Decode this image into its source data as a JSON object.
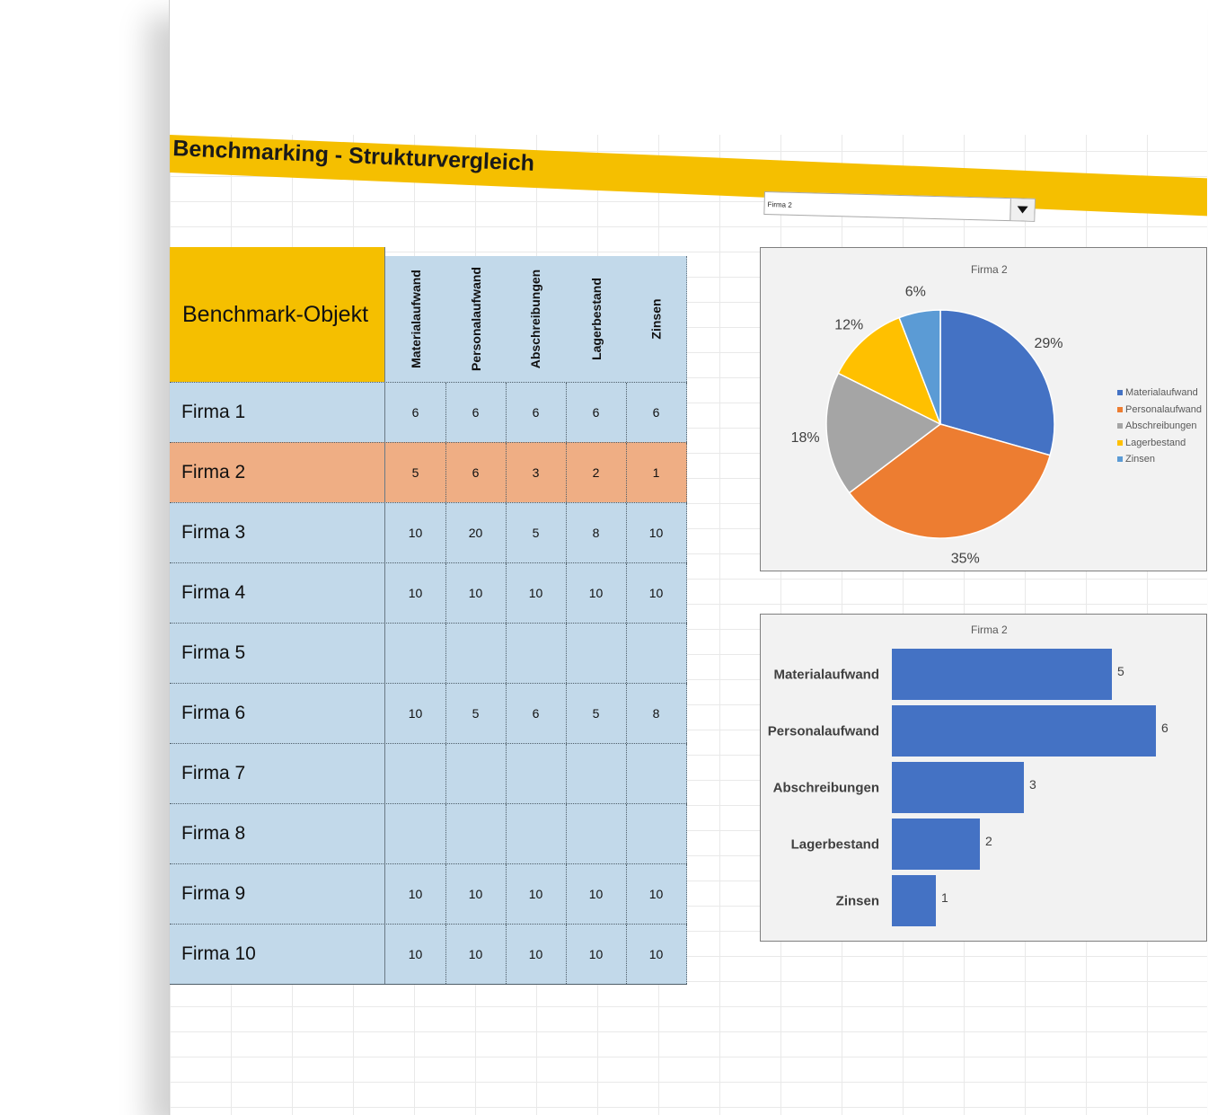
{
  "title": "Benchmarking - Strukturvergleich",
  "dropdown": {
    "selected": "Firma 2"
  },
  "table": {
    "header": "Benchmark-Objekt",
    "columns": [
      "Materialaufwand",
      "Personalaufwand",
      "Abschreibungen",
      "Lagerbestand",
      "Zinsen"
    ],
    "selected_row": 1,
    "rows": [
      {
        "name": "Firma 1",
        "values": [
          "6",
          "6",
          "6",
          "6",
          "6"
        ]
      },
      {
        "name": "Firma 2",
        "values": [
          "5",
          "6",
          "3",
          "2",
          "1"
        ]
      },
      {
        "name": "Firma 3",
        "values": [
          "10",
          "20",
          "5",
          "8",
          "10"
        ]
      },
      {
        "name": "Firma 4",
        "values": [
          "10",
          "10",
          "10",
          "10",
          "10"
        ]
      },
      {
        "name": "Firma 5",
        "values": [
          "",
          "",
          "",
          "",
          ""
        ]
      },
      {
        "name": "Firma 6",
        "values": [
          "10",
          "5",
          "6",
          "5",
          "8"
        ]
      },
      {
        "name": "Firma 7",
        "values": [
          "",
          "",
          "",
          "",
          ""
        ]
      },
      {
        "name": "Firma 8",
        "values": [
          "",
          "",
          "",
          "",
          ""
        ]
      },
      {
        "name": "Firma 9",
        "values": [
          "10",
          "10",
          "10",
          "10",
          "10"
        ]
      },
      {
        "name": "Firma 10",
        "values": [
          "10",
          "10",
          "10",
          "10",
          "10"
        ]
      }
    ]
  },
  "chart_data": [
    {
      "type": "pie",
      "title": "Firma 2",
      "categories": [
        "Materialaufwand",
        "Personalaufwand",
        "Abschreibungen",
        "Lagerbestand",
        "Zinsen"
      ],
      "values": [
        5,
        6,
        3,
        2,
        1
      ],
      "percent_labels": [
        "29%",
        "35%",
        "18%",
        "12%",
        "6%"
      ],
      "colors": [
        "#4472c4",
        "#ed7d31",
        "#a5a5a5",
        "#ffc000",
        "#5b9bd5"
      ],
      "legend_position": "right"
    },
    {
      "type": "bar",
      "orientation": "horizontal",
      "title": "Firma 2",
      "categories": [
        "Materialaufwand",
        "Personalaufwand",
        "Abschreibungen",
        "Lagerbestand",
        "Zinsen"
      ],
      "values": [
        5,
        6,
        3,
        2,
        1
      ],
      "color": "#4472c4",
      "xlim": [
        0,
        6
      ]
    }
  ]
}
